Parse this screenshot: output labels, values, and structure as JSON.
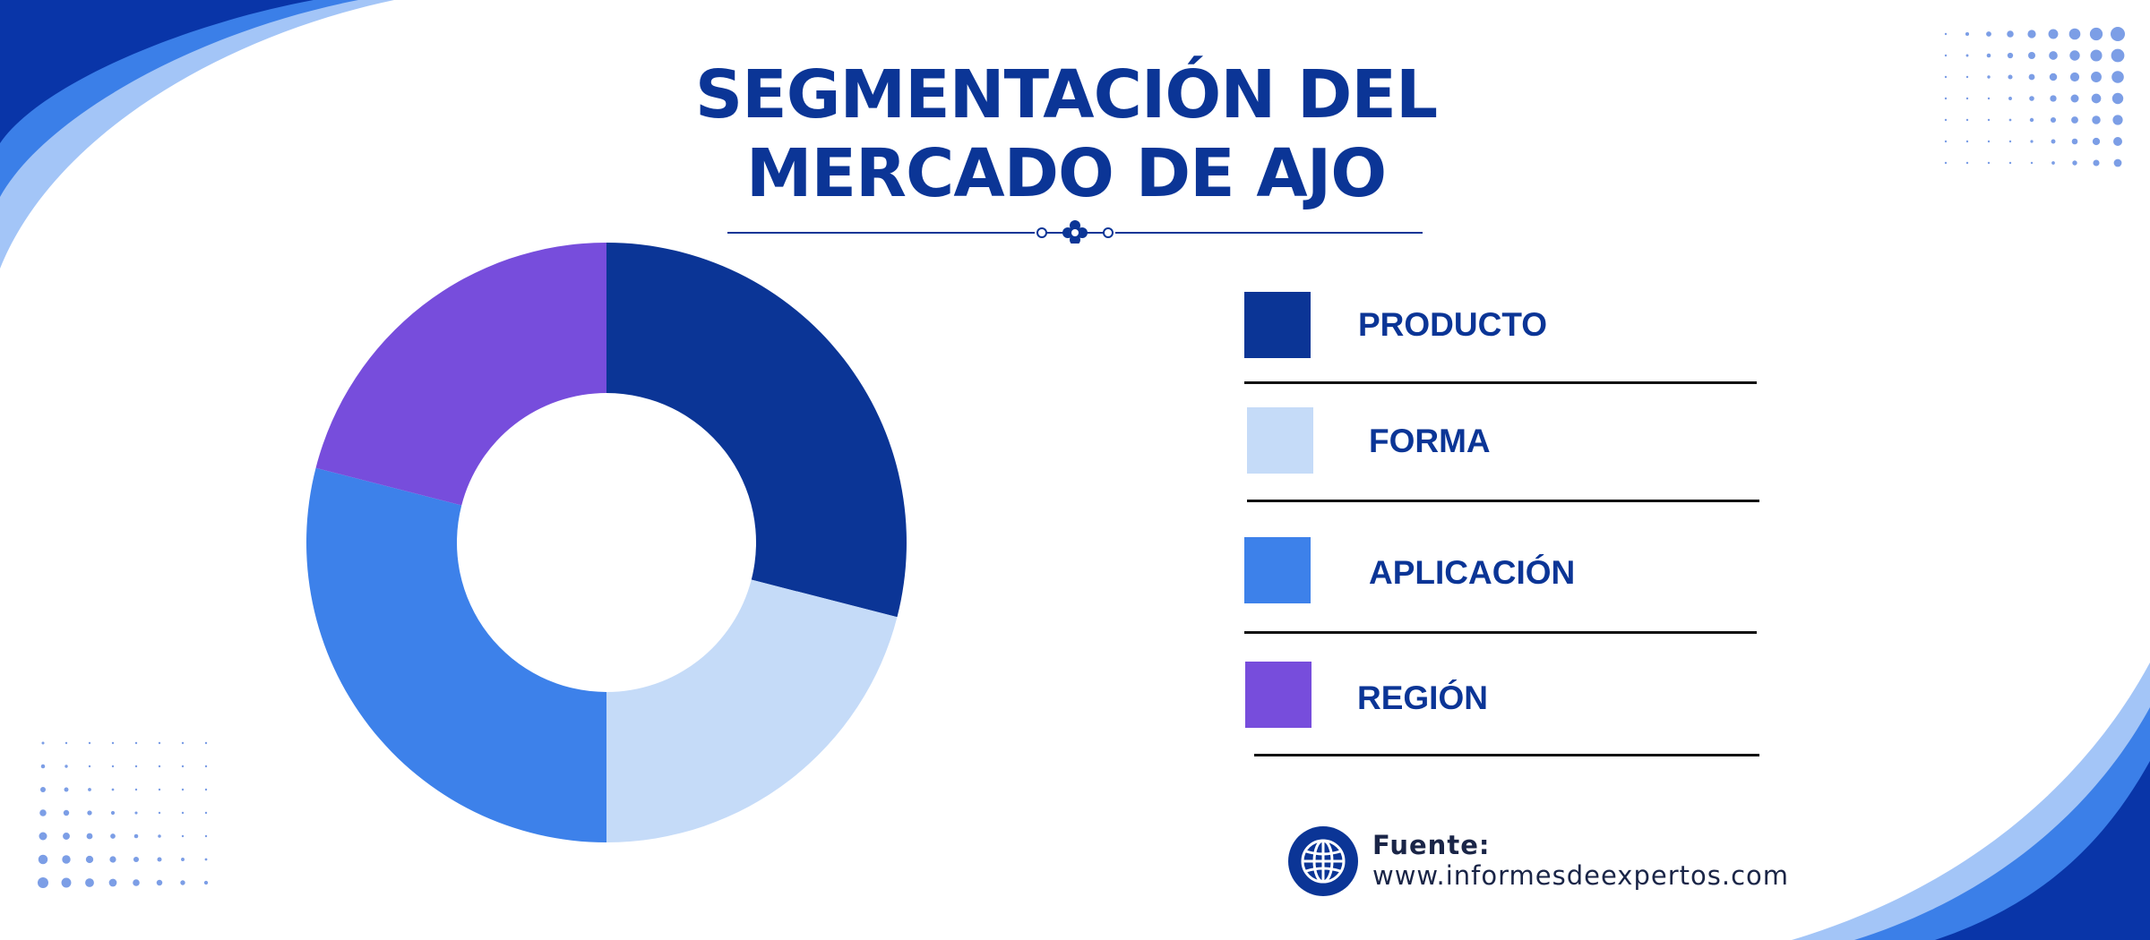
{
  "title": {
    "line1": "SEGMENTACIÓN DEL",
    "line2": "MERCADO DE AJO"
  },
  "colors": {
    "producto": "#0b3596",
    "forma": "#c5dbf8",
    "aplicacion": "#3d81ea",
    "region": "#774ddc",
    "title": "#0b3596",
    "accent_dark": "#0935a8",
    "accent_mid": "#3b7fe8",
    "accent_light": "#a3c5f7"
  },
  "chart_data": {
    "type": "pie",
    "donut": true,
    "categories": [
      "PRODUCTO",
      "FORMA",
      "APLICACIÓN",
      "REGIÓN"
    ],
    "values": [
      29,
      21,
      29,
      21
    ],
    "title": "SEGMENTACIÓN DEL MERCADO DE AJO",
    "legend": "right"
  },
  "legend": {
    "items": [
      {
        "label": "PRODUCTO",
        "color": "#0b3596"
      },
      {
        "label": "FORMA",
        "color": "#c5dbf8"
      },
      {
        "label": "APLICACIÓN",
        "color": "#3d81ea"
      },
      {
        "label": "REGIÓN",
        "color": "#774ddc"
      }
    ]
  },
  "source": {
    "label": "Fuente:",
    "url": "www.informesdeexpertos.com",
    "icon": "globe-icon"
  }
}
